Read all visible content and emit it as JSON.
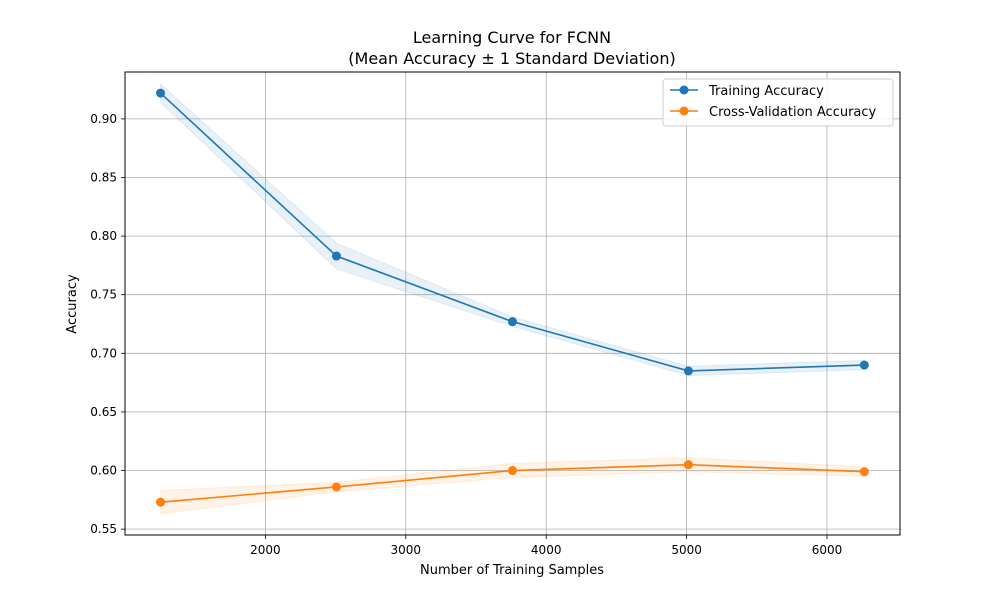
{
  "chart_data": {
    "type": "line",
    "title": "Learning Curve for FCNN",
    "subtitle": "(Mean Accuracy ± 1 Standard Deviation)",
    "xlabel": "Number of Training Samples",
    "ylabel": "Accuracy",
    "xlim": [
      1000,
      6520
    ],
    "ylim": [
      0.545,
      0.94
    ],
    "xticks": [
      2000,
      3000,
      4000,
      5000,
      6000
    ],
    "xtick_labels": [
      "2000",
      "3000",
      "4000",
      "5000",
      "6000"
    ],
    "yticks": [
      0.55,
      0.6,
      0.65,
      0.7,
      0.75,
      0.8,
      0.85,
      0.9
    ],
    "ytick_labels": [
      "0.55",
      "0.60",
      "0.65",
      "0.70",
      "0.75",
      "0.80",
      "0.85",
      "0.90"
    ],
    "grid": true,
    "legend_position": "top-right",
    "x": [
      1253,
      2506,
      3760,
      5013,
      6266
    ],
    "series": [
      {
        "name": "Training Accuracy",
        "color": "#1f77b4",
        "values": [
          0.922,
          0.783,
          0.727,
          0.685,
          0.69
        ],
        "std": [
          0.008,
          0.011,
          0.004,
          0.004,
          0.004
        ]
      },
      {
        "name": "Cross-Validation Accuracy",
        "color": "#ff7f0e",
        "values": [
          0.573,
          0.586,
          0.6,
          0.605,
          0.599
        ],
        "std": [
          0.01,
          0.004,
          0.006,
          0.006,
          0.004
        ]
      }
    ]
  }
}
